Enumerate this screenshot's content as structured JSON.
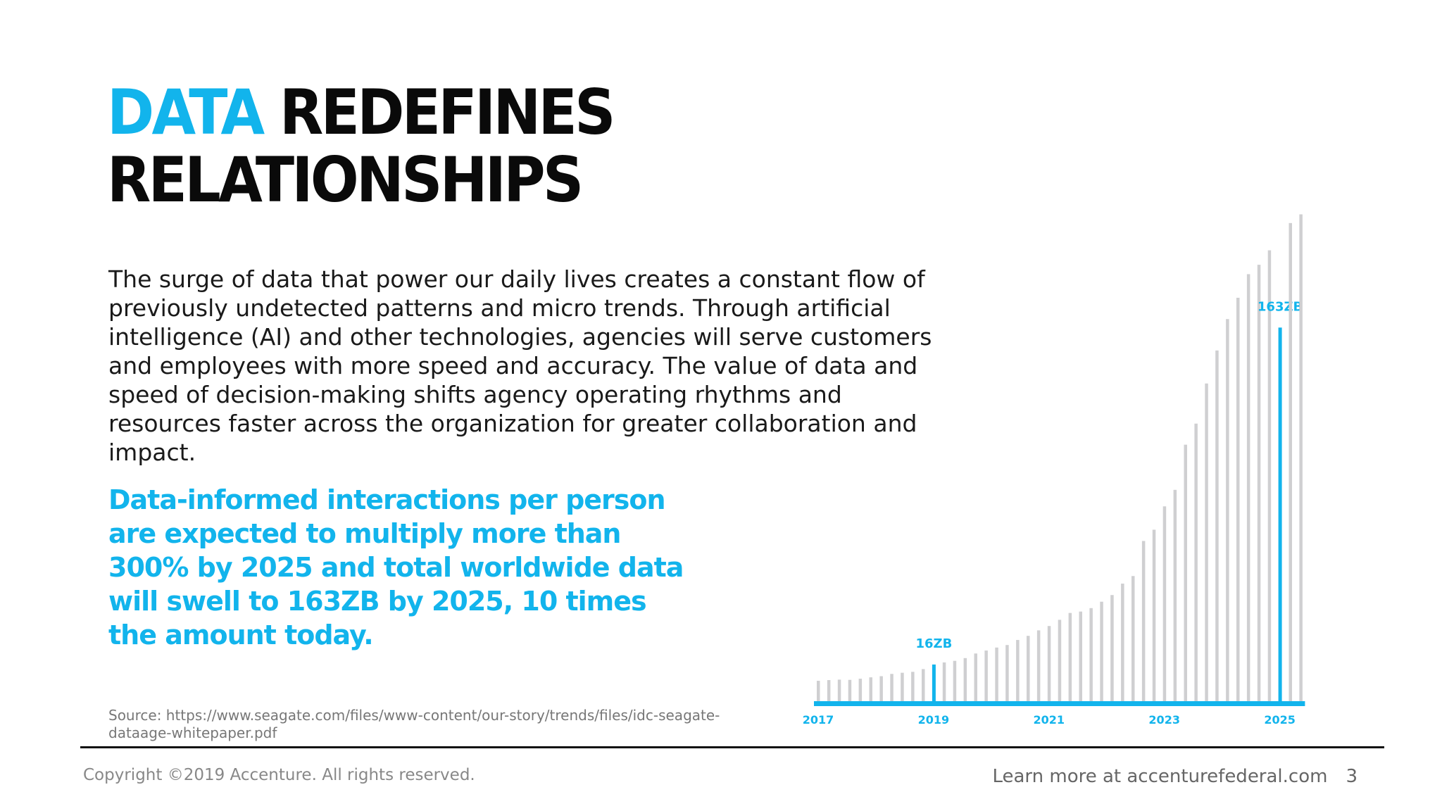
{
  "slide": {
    "title_accent": "DATA",
    "title_rest": "REDEFINES",
    "title_line2": "RELATIONSHIPS",
    "body": "The surge of data that power our daily lives creates a constant flow of previously undetected patterns and micro trends. Through artificial intelligence (AI) and other technologies, agencies will serve customers and employees with more speed and accuracy. The value of data and speed of decision-making shifts agency operating rhythms and resources faster across the organization for greater collaboration and impact.",
    "highlight": "Data-informed interactions per person are expected to multiply more than 300% by 2025 and total worldwide data will swell to 163ZB by 2025, 10 times the amount today.",
    "source": "Source: https://www.seagate.com/files/www-content/our-story/trends/files/idc-seagate-dataage-whitepaper.pdf"
  },
  "footer": {
    "copyright": "Copyright ©2019 Accenture. All rights reserved.",
    "learn_more": "Learn more at accenturefederal.com",
    "page_number": "3"
  },
  "colors": {
    "accent": "#12b4ec",
    "bar_gray": "#cfcfd1",
    "title_black": "#0a0a0a"
  },
  "chart_data": {
    "type": "bar",
    "title": "",
    "xlabel": "",
    "ylabel": "",
    "x_tick_labels": [
      "2017",
      "2019",
      "2021",
      "2023",
      "2025"
    ],
    "highlighted_labels": [
      {
        "bar_index": 11,
        "label": "16ZB"
      },
      {
        "bar_index": 44,
        "label": "163ZB"
      }
    ],
    "values": [
      8.9,
      9.2,
      9.4,
      9.3,
      9.8,
      10.4,
      10.9,
      11.9,
      12.4,
      12.8,
      14.0,
      16,
      16.9,
      17.6,
      18.8,
      20.8,
      22.1,
      23.4,
      24.5,
      26.7,
      28.5,
      30.9,
      32.8,
      35.5,
      38.5,
      39.1,
      40.6,
      43.4,
      46.3,
      51.3,
      54.6,
      69.9,
      74.8,
      85.0,
      92.2,
      111.9,
      121.1,
      138.6,
      153.0,
      166.7,
      176.0,
      186.3,
      190.4,
      196.7,
      163,
      208.6,
      212.4
    ],
    "ylim": [
      0,
      215
    ],
    "grid": false,
    "baseline": true
  }
}
